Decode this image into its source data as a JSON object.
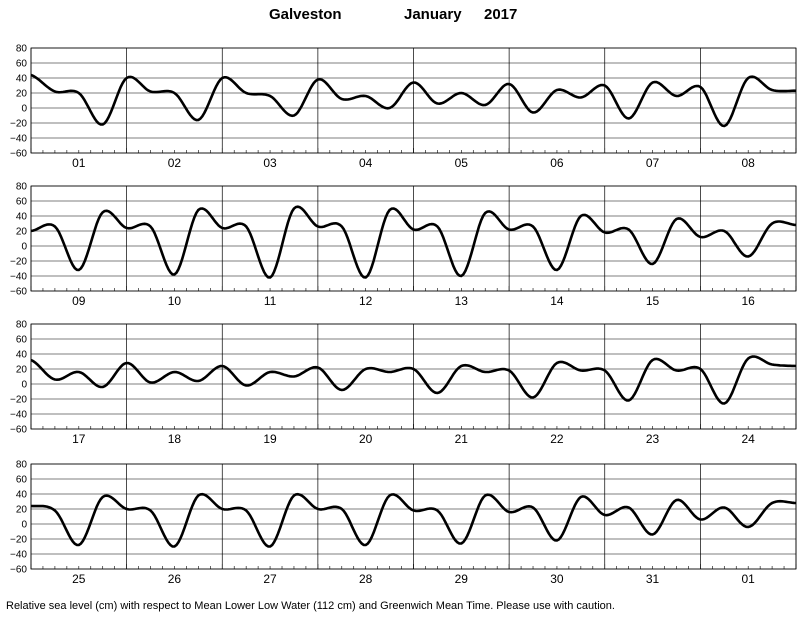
{
  "header": {
    "station": "Galveston",
    "month": "January",
    "year": "2017"
  },
  "footnote": "Relative sea level (cm) with respect to Mean Lower Low Water (112 cm) and Greenwich Mean Time. Please use with caution.",
  "colors": {
    "curve": "#000000",
    "grid": "#000000",
    "background": "#ffffff"
  },
  "chart_data": [
    {
      "type": "line",
      "ylabel": "",
      "ylim": [
        -60,
        80
      ],
      "yticks": [
        80,
        60,
        40,
        20,
        0,
        -20,
        -40,
        -60
      ],
      "grid": true,
      "day_labels": [
        "01",
        "02",
        "03",
        "04",
        "05",
        "06",
        "07",
        "08"
      ],
      "series": [
        {
          "x_hours": [
            0,
            6,
            12,
            18,
            24,
            30,
            36,
            42,
            48,
            54,
            60,
            66,
            72,
            78,
            84,
            90,
            96,
            102,
            108,
            114,
            120,
            126,
            132,
            138,
            144,
            150,
            156,
            162,
            168,
            174,
            180,
            186,
            192
          ],
          "values": [
            44,
            22,
            20,
            -22,
            40,
            22,
            20,
            -16,
            40,
            20,
            16,
            -10,
            38,
            12,
            16,
            0,
            34,
            6,
            20,
            4,
            32,
            -6,
            24,
            14,
            30,
            -14,
            34,
            16,
            28,
            -24,
            40,
            24,
            23
          ]
        }
      ]
    },
    {
      "type": "line",
      "ylabel": "",
      "ylim": [
        -60,
        80
      ],
      "yticks": [
        80,
        60,
        40,
        20,
        0,
        -20,
        -40,
        -60
      ],
      "grid": true,
      "day_labels": [
        "09",
        "10",
        "11",
        "12",
        "13",
        "14",
        "15",
        "16"
      ],
      "series": [
        {
          "x_hours": [
            0,
            6,
            12,
            18,
            24,
            30,
            36,
            42,
            48,
            54,
            60,
            66,
            72,
            78,
            84,
            90,
            96,
            102,
            108,
            114,
            120,
            126,
            132,
            138,
            144,
            150,
            156,
            162,
            168,
            174,
            180,
            186,
            192
          ],
          "values": [
            20,
            26,
            -32,
            45,
            24,
            26,
            -38,
            48,
            24,
            26,
            -42,
            50,
            26,
            26,
            -42,
            48,
            22,
            26,
            -40,
            44,
            22,
            26,
            -32,
            40,
            18,
            22,
            -24,
            36,
            12,
            20,
            -14,
            30,
            28
          ]
        }
      ]
    },
    {
      "type": "line",
      "ylabel": "",
      "ylim": [
        -60,
        80
      ],
      "yticks": [
        80,
        60,
        40,
        20,
        0,
        -20,
        -40,
        -60
      ],
      "grid": true,
      "day_labels": [
        "17",
        "18",
        "19",
        "20",
        "21",
        "22",
        "23",
        "24"
      ],
      "series": [
        {
          "x_hours": [
            0,
            6,
            12,
            18,
            24,
            30,
            36,
            42,
            48,
            54,
            60,
            66,
            72,
            78,
            84,
            90,
            96,
            102,
            108,
            114,
            120,
            126,
            132,
            138,
            144,
            150,
            156,
            162,
            168,
            174,
            180,
            186,
            192
          ],
          "values": [
            32,
            6,
            16,
            -4,
            28,
            2,
            16,
            4,
            24,
            -2,
            16,
            10,
            22,
            -8,
            20,
            16,
            20,
            -12,
            24,
            16,
            18,
            -18,
            28,
            18,
            18,
            -22,
            32,
            18,
            20,
            -26,
            34,
            26,
            24
          ]
        }
      ]
    },
    {
      "type": "line",
      "ylabel": "",
      "ylim": [
        -60,
        80
      ],
      "yticks": [
        80,
        60,
        40,
        20,
        0,
        -20,
        -40,
        -60
      ],
      "grid": true,
      "day_labels": [
        "25",
        "26",
        "27",
        "28",
        "29",
        "30",
        "31",
        "01"
      ],
      "series": [
        {
          "x_hours": [
            0,
            6,
            12,
            18,
            24,
            30,
            36,
            42,
            48,
            54,
            60,
            66,
            72,
            78,
            84,
            90,
            96,
            102,
            108,
            114,
            120,
            126,
            132,
            138,
            144,
            150,
            156,
            162,
            168,
            174,
            180,
            186,
            192
          ],
          "values": [
            24,
            18,
            -28,
            36,
            20,
            18,
            -30,
            38,
            20,
            18,
            -30,
            38,
            20,
            20,
            -28,
            38,
            18,
            18,
            -26,
            38,
            16,
            22,
            -22,
            36,
            12,
            22,
            -14,
            32,
            6,
            22,
            -4,
            28,
            28
          ]
        }
      ]
    }
  ]
}
